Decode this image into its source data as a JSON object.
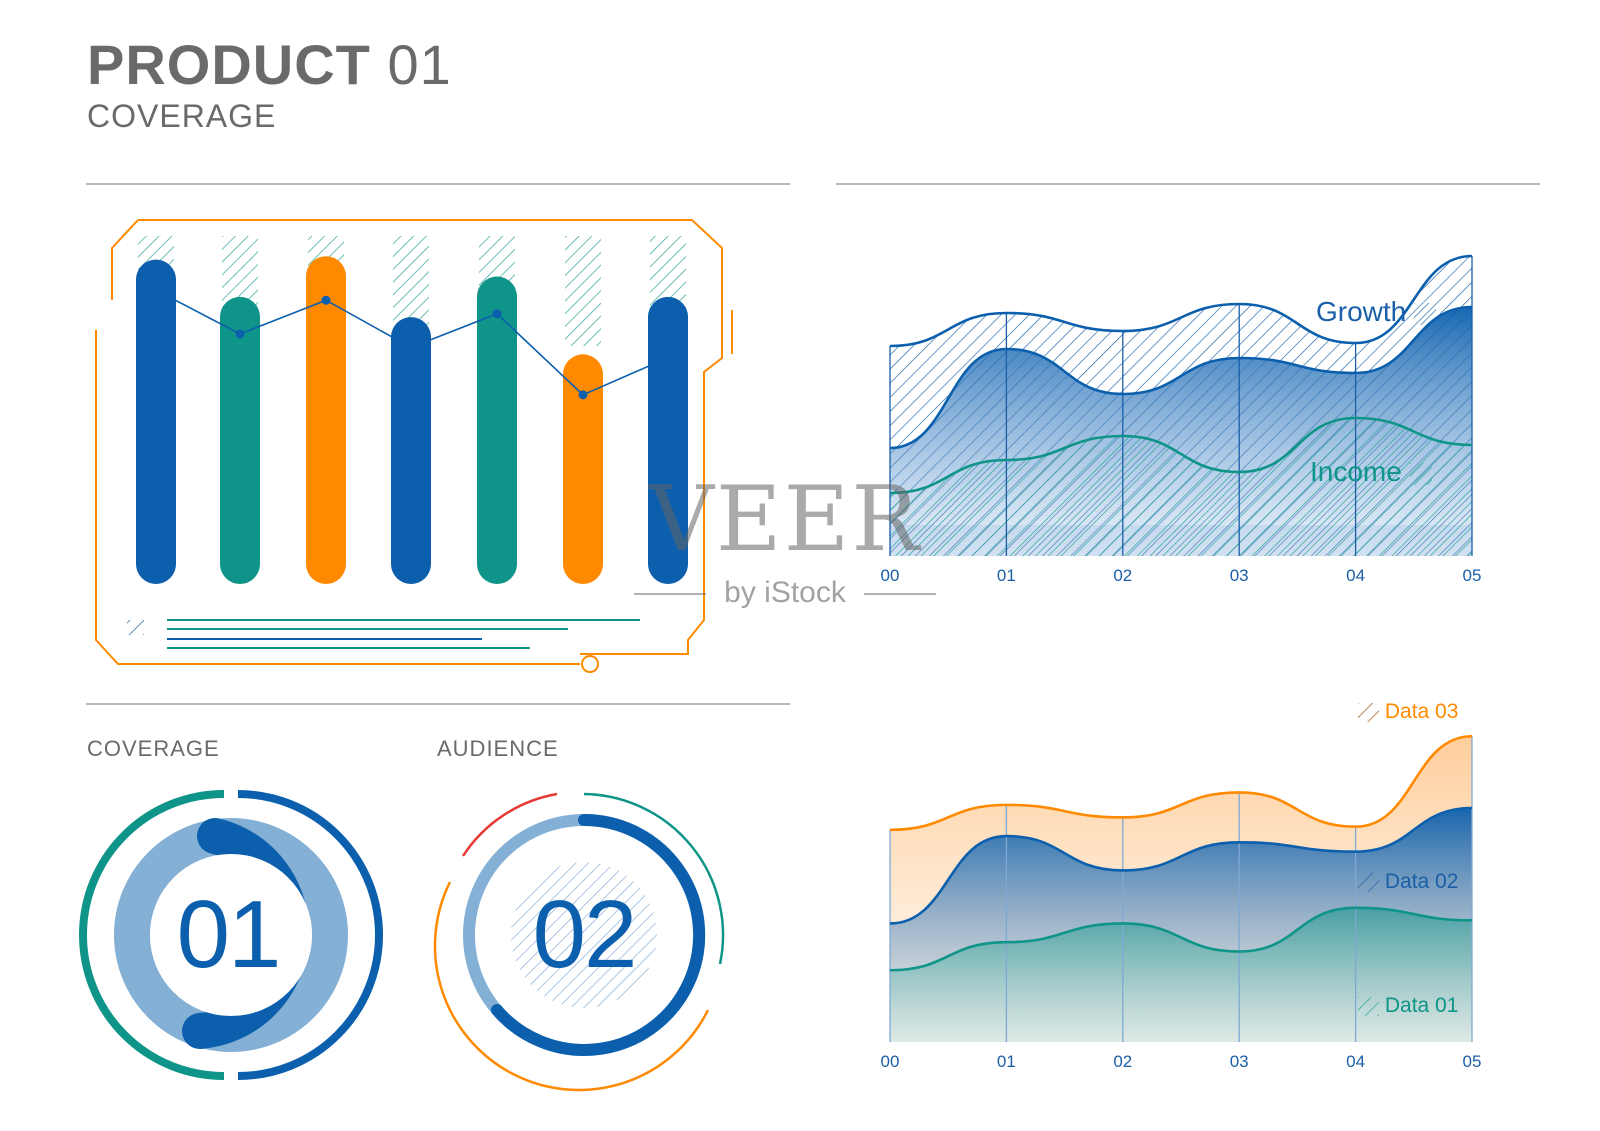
{
  "header": {
    "title_bold": "PRODUCT",
    "title_num": "01",
    "subtitle": "COVERAGE"
  },
  "colors": {
    "blue": "#0b5fad",
    "teal": "#0e9488",
    "orange": "#ff8a00",
    "lightblue": "#84b0d6",
    "gray": "#6a6a6a",
    "red": "#e53935"
  },
  "chart_data": [
    {
      "type": "bar",
      "series": [
        {
          "values": [
            0.93,
            0.82,
            0.94,
            0.76,
            0.88,
            0.65,
            0.82
          ]
        }
      ],
      "bar_colors": [
        "blue",
        "teal",
        "orange",
        "blue",
        "teal",
        "orange",
        "blue"
      ],
      "line_overlay": [
        0.84,
        0.71,
        0.81,
        0.67,
        0.77,
        0.53,
        0.64
      ],
      "ylim": [
        0,
        1
      ]
    },
    {
      "type": "area",
      "x": [
        "00",
        "01",
        "02",
        "03",
        "04",
        "05"
      ],
      "series": [
        {
          "name": "Growth",
          "values": [
            7.0,
            8.1,
            7.5,
            8.4,
            7.1,
            10.0
          ]
        },
        {
          "name": "",
          "values": [
            3.6,
            6.9,
            5.4,
            6.6,
            6.1,
            8.3
          ]
        },
        {
          "name": "Income",
          "values": [
            2.1,
            3.2,
            4.0,
            2.8,
            4.6,
            3.7
          ]
        }
      ],
      "ylim": [
        0,
        10.2
      ]
    },
    {
      "type": "area",
      "x": [
        "00",
        "01",
        "02",
        "03",
        "04",
        "05"
      ],
      "series": [
        {
          "name": "Data 03",
          "values": [
            6.8,
            7.6,
            7.2,
            8.0,
            6.9,
            9.8
          ]
        },
        {
          "name": "Data 02",
          "values": [
            3.8,
            6.6,
            5.5,
            6.4,
            6.1,
            7.5
          ]
        },
        {
          "name": "Data 01",
          "values": [
            2.3,
            3.2,
            3.8,
            2.9,
            4.3,
            3.9
          ]
        }
      ],
      "ylim": [
        0,
        10
      ]
    }
  ],
  "gauges": [
    {
      "label": "COVERAGE",
      "value": "01",
      "fill_fraction": 0.5
    },
    {
      "label": "AUDIENCE",
      "value": "02",
      "fill_fraction": 0.72
    }
  ],
  "watermark": {
    "main": "VEER",
    "sub": "by iStock"
  }
}
